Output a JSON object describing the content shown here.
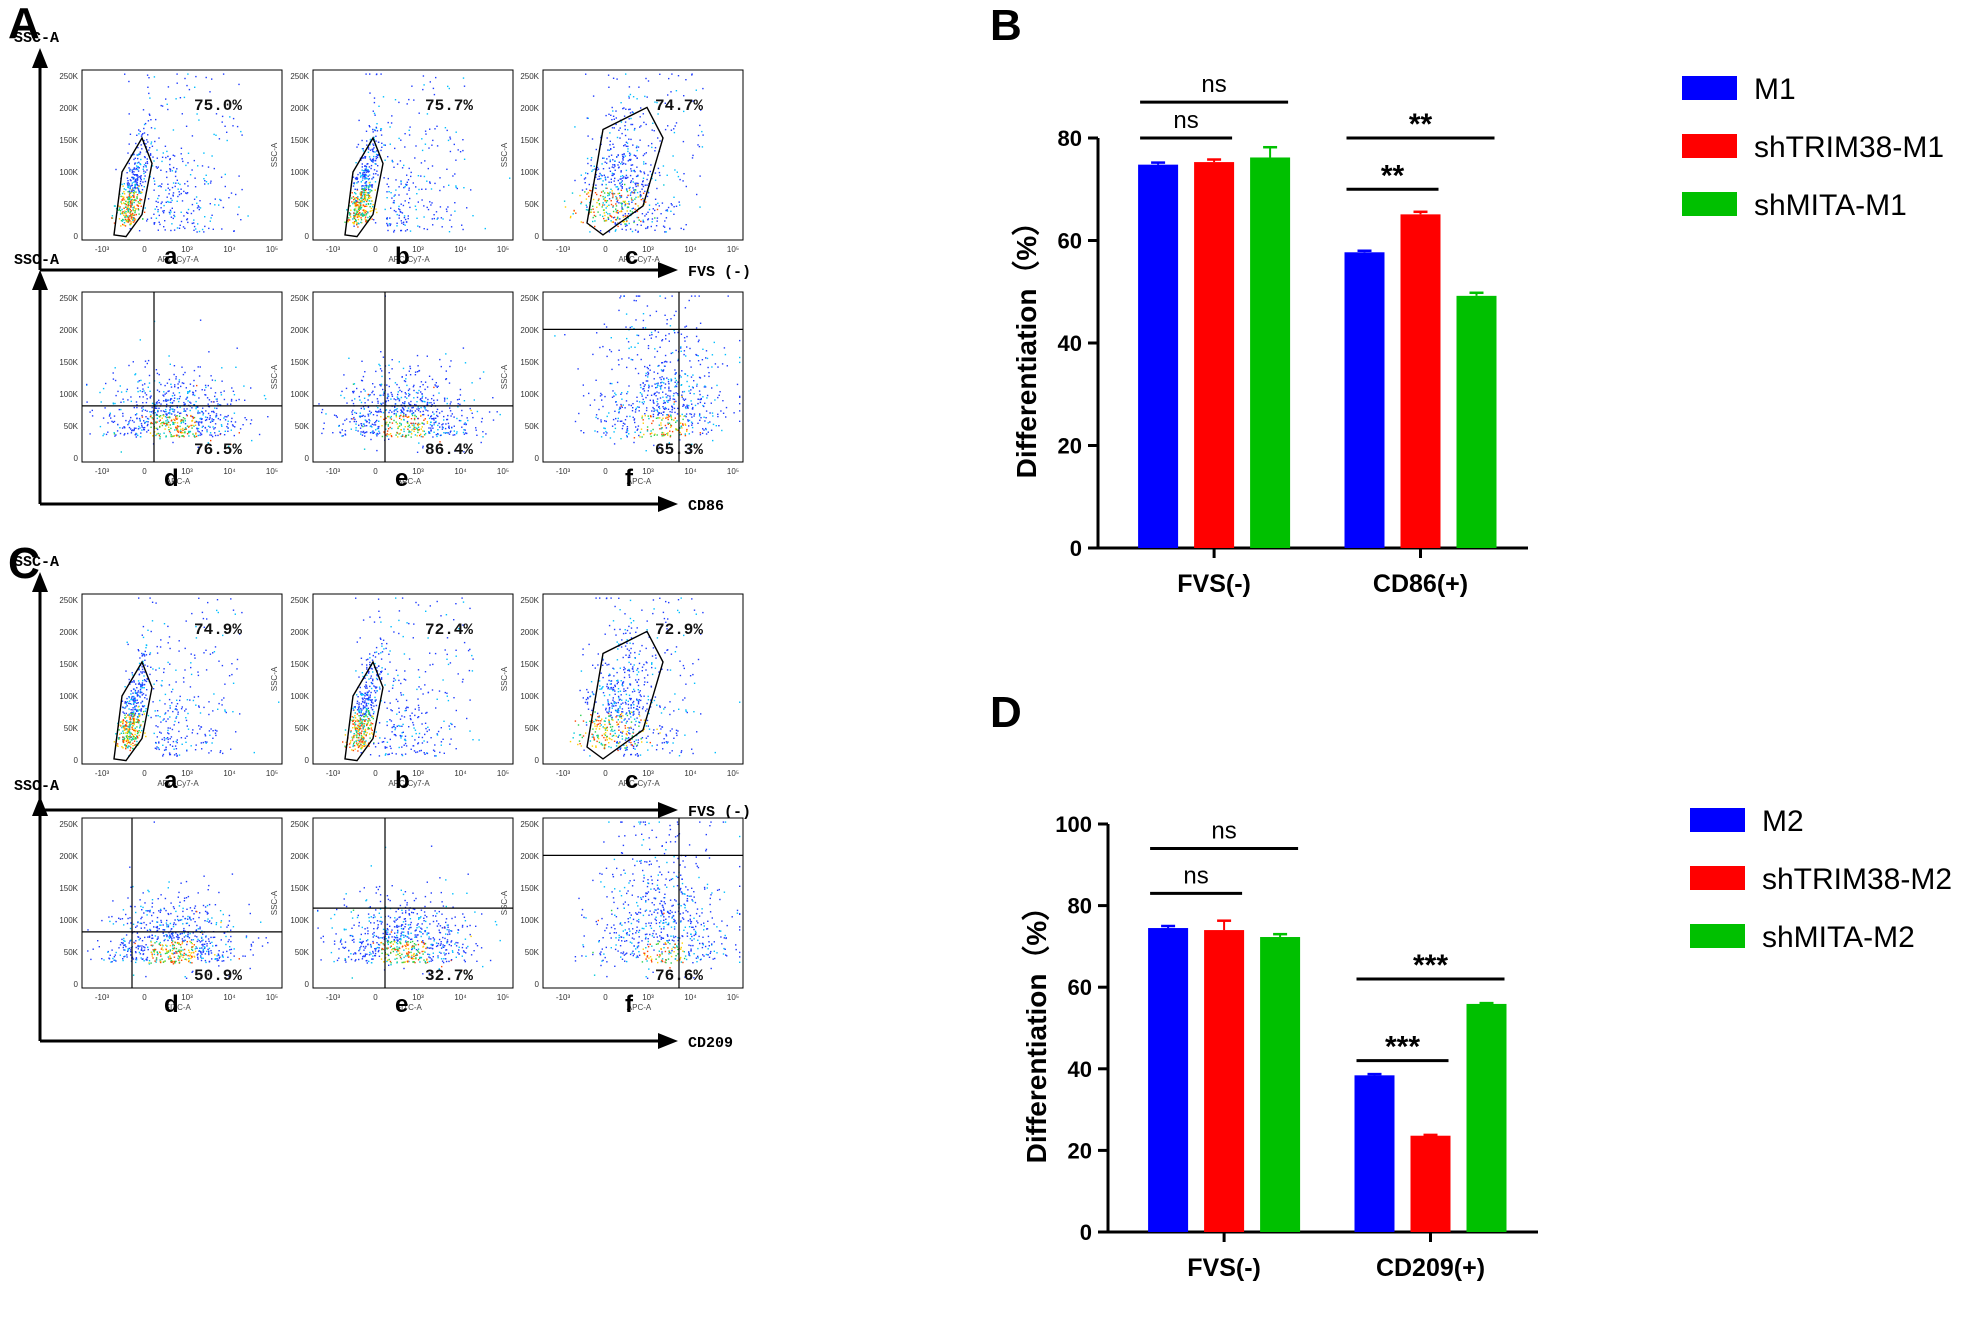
{
  "panel_labels": {
    "A": "A",
    "B": "B",
    "C": "C",
    "D": "D"
  },
  "flow_common": {
    "ssc_label": "SSC-A",
    "y_ticks": [
      "250K",
      "200K",
      "150K",
      "100K",
      "50K",
      "0"
    ],
    "x_ticks": [
      "-10³",
      "0",
      "10³",
      "10⁴",
      "10⁵"
    ]
  },
  "panel_A": {
    "rows": [
      {
        "axis_label": "FVS (-)",
        "plots": [
          {
            "sub": "a",
            "pct": "75.0%",
            "xname": "APC-Cy7-A",
            "yname": "",
            "gate": "poly"
          },
          {
            "sub": "b",
            "pct": "75.7%",
            "xname": "APC-Cy7-A",
            "yname": "SSC-A",
            "gate": "poly"
          },
          {
            "sub": "c",
            "pct": "74.7%",
            "xname": "APC-Cy7-A",
            "yname": "SSC-A",
            "gate": "poly-wide"
          }
        ]
      },
      {
        "axis_label": "CD86",
        "plots": [
          {
            "sub": "d",
            "pct": "76.5%",
            "xname": "APC-A",
            "yname": "",
            "gate": "quad"
          },
          {
            "sub": "e",
            "pct": "86.4%",
            "xname": "APC-A",
            "yname": "SSC-A",
            "gate": "quad"
          },
          {
            "sub": "f",
            "pct": "65.3%",
            "xname": "APC-A",
            "yname": "SSC-A",
            "gate": "quad"
          }
        ]
      }
    ]
  },
  "panel_C": {
    "rows": [
      {
        "axis_label": "FVS (-)",
        "plots": [
          {
            "sub": "a",
            "pct": "74.9%",
            "xname": "APC-Cy7-A",
            "yname": "",
            "gate": "poly"
          },
          {
            "sub": "b",
            "pct": "72.4%",
            "xname": "APC-Cy7-A",
            "yname": "SSC-A",
            "gate": "poly"
          },
          {
            "sub": "c",
            "pct": "72.9%",
            "xname": "APC-Cy7-A",
            "yname": "SSC-A",
            "gate": "poly-wide"
          }
        ]
      },
      {
        "axis_label": "CD209",
        "plots": [
          {
            "sub": "d",
            "pct": "50.9%",
            "xname": "FITC-A",
            "yname": "",
            "gate": "quad"
          },
          {
            "sub": "e",
            "pct": "32.7%",
            "xname": "FITC-A",
            "yname": "SSC-A",
            "gate": "quad"
          },
          {
            "sub": "f",
            "pct": "76.6%",
            "xname": "APC-A",
            "yname": "SSC-A",
            "gate": "quad"
          }
        ]
      }
    ]
  },
  "colors": {
    "blue": "#0000ff",
    "red": "#ff0000",
    "green": "#00c000"
  },
  "chart_data": [
    {
      "panel": "B",
      "type": "bar",
      "ylabel": "Differentiation（%）",
      "ylim": [
        0,
        80
      ],
      "yticks": [
        0,
        20,
        40,
        60,
        80
      ],
      "categories": [
        "FVS(-)",
        "CD86(+)"
      ],
      "series": [
        {
          "name": "M1",
          "color": "#0000ff",
          "values": [
            74.8,
            57.7
          ],
          "errors": [
            0.4,
            0.3
          ]
        },
        {
          "name": "shTRIM38-M1",
          "color": "#ff0000",
          "values": [
            75.3,
            65.1
          ],
          "errors": [
            0.5,
            0.5
          ]
        },
        {
          "name": "shMITA-M1",
          "color": "#00c000",
          "values": [
            76.2,
            49.2
          ],
          "errors": [
            2.0,
            0.6
          ]
        }
      ],
      "annotations": [
        {
          "text": "ns",
          "group": 0,
          "from": 0,
          "to": 2,
          "y": 87
        },
        {
          "text": "ns",
          "group": 0,
          "from": 0,
          "to": 1,
          "y": 80
        },
        {
          "text": "**",
          "group": 1,
          "from": 0,
          "to": 2,
          "y": 80
        },
        {
          "text": "**",
          "group": 1,
          "from": 0,
          "to": 1,
          "y": 70
        }
      ]
    },
    {
      "panel": "D",
      "type": "bar",
      "ylabel": "Differentiation（%）",
      "ylim": [
        0,
        100
      ],
      "yticks": [
        0,
        20,
        40,
        60,
        80,
        100
      ],
      "categories": [
        "FVS(-)",
        "CD209(+)"
      ],
      "series": [
        {
          "name": "M2",
          "color": "#0000ff",
          "values": [
            74.5,
            38.4
          ],
          "errors": [
            0.5,
            0.3
          ]
        },
        {
          "name": "shTRIM38-M2",
          "color": "#ff0000",
          "values": [
            74.0,
            23.6
          ],
          "errors": [
            2.3,
            0.2
          ]
        },
        {
          "name": "shMITA-M2",
          "color": "#00c000",
          "values": [
            72.3,
            55.9
          ],
          "errors": [
            0.7,
            0.2
          ]
        }
      ],
      "annotations": [
        {
          "text": "ns",
          "group": 0,
          "from": 0,
          "to": 2,
          "y": 94
        },
        {
          "text": "ns",
          "group": 0,
          "from": 0,
          "to": 1,
          "y": 83
        },
        {
          "text": "***",
          "group": 1,
          "from": 0,
          "to": 2,
          "y": 62
        },
        {
          "text": "***",
          "group": 1,
          "from": 0,
          "to": 1,
          "y": 42
        }
      ]
    }
  ]
}
